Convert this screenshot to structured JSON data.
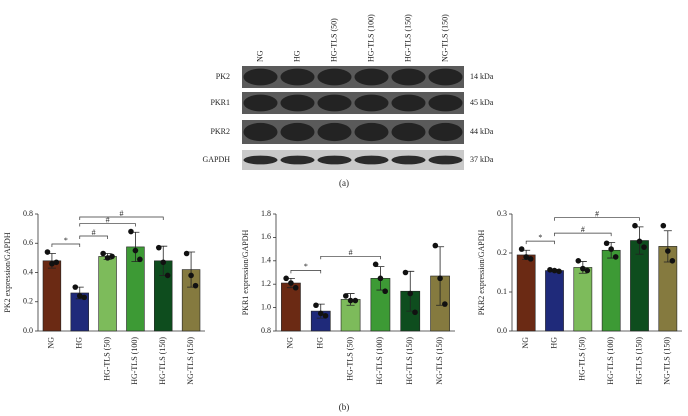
{
  "blot": {
    "caption": "(a)",
    "lanes": [
      "NG",
      "HG",
      "HG-TLS (50)",
      "HG-TLS (100)",
      "HG-TLS (150)",
      "NG-TLS (150)"
    ],
    "rows": [
      {
        "protein": "PK2",
        "size": "14 kDa"
      },
      {
        "protein": "PKR1",
        "size": "45 kDa"
      },
      {
        "protein": "PKR2",
        "size": "44 kDa"
      },
      {
        "protein": "GAPDH",
        "size": "37 kDa"
      }
    ]
  },
  "caption_b": "(b)",
  "chart_data": [
    {
      "type": "bar",
      "y_label": "PK2 expression/GAPDH",
      "categories": [
        "NG",
        "HG",
        "HG-TLS (50)",
        "HG-TLS (100)",
        "HG-TLS (150)",
        "NG-TLS (150)"
      ],
      "colors": [
        "#6b2a14",
        "#1f2a7a",
        "#7dbb5b",
        "#3d9a35",
        "#0e4d1e",
        "#857a3f"
      ],
      "values": [
        0.48,
        0.26,
        0.51,
        0.575,
        0.48,
        0.42
      ],
      "errors": [
        0.05,
        0.04,
        0.02,
        0.1,
        0.1,
        0.12
      ],
      "points": [
        [
          0.54,
          0.46,
          0.47
        ],
        [
          0.3,
          0.24,
          0.23
        ],
        [
          0.53,
          0.5,
          0.51
        ],
        [
          0.68,
          0.55,
          0.49
        ],
        [
          0.57,
          0.47,
          0.38
        ],
        [
          0.53,
          0.38,
          0.31
        ]
      ],
      "ylim": [
        0,
        0.8
      ],
      "yticks": [
        {
          "value": 0,
          "label": "0.0"
        },
        0.2,
        0.4,
        0.6,
        0.8
      ],
      "annotations": [
        {
          "text": "*",
          "from": "NG",
          "to": "HG"
        },
        {
          "text": "#",
          "from": "HG",
          "to": "HG-TLS (50)"
        },
        {
          "text": "#",
          "from": "HG",
          "to": "HG-TLS (100)"
        },
        {
          "text": "#",
          "from": "HG",
          "to": "HG-TLS (150)"
        }
      ]
    },
    {
      "type": "bar",
      "y_label": "PKR1 expression/GAPDH",
      "categories": [
        "NG",
        "HG",
        "HG-TLS (50)",
        "HG-TLS (100)",
        "HG-TLS (150)",
        "NG-TLS (150)"
      ],
      "colors": [
        "#6b2a14",
        "#1f2a7a",
        "#7dbb5b",
        "#3d9a35",
        "#0e4d1e",
        "#857a3f"
      ],
      "values": [
        1.21,
        0.97,
        1.07,
        1.25,
        1.14,
        1.27
      ],
      "errors": [
        0.04,
        0.06,
        0.05,
        0.1,
        0.17,
        0.25
      ],
      "points": [
        [
          1.25,
          1.21,
          1.17
        ],
        [
          1.02,
          0.95,
          0.93
        ],
        [
          1.1,
          1.06,
          1.06
        ],
        [
          1.37,
          1.25,
          1.14
        ],
        [
          1.3,
          1.12,
          0.96
        ],
        [
          1.53,
          1.25,
          1.03
        ]
      ],
      "ylim": [
        0.8,
        1.8
      ],
      "yticks": [
        0.8,
        {
          "value": 1,
          "label": "1.0"
        },
        1.2,
        1.4,
        1.6,
        1.8
      ],
      "annotations": [
        {
          "text": "*",
          "from": "NG",
          "to": "HG"
        },
        {
          "text": "#",
          "from": "HG",
          "to": "HG-TLS (100)"
        }
      ]
    },
    {
      "type": "bar",
      "y_label": "PKR2 expression/GAPDH",
      "categories": [
        "NG",
        "HG",
        "HG-TLS (50)",
        "HG-TLS (100)",
        "HG-TLS (150)",
        "NG-TLS (150)"
      ],
      "colors": [
        "#6b2a14",
        "#1f2a7a",
        "#7dbb5b",
        "#3d9a35",
        "#0e4d1e",
        "#857a3f"
      ],
      "values": [
        0.195,
        0.155,
        0.163,
        0.207,
        0.232,
        0.217
      ],
      "errors": [
        0.012,
        0.003,
        0.015,
        0.02,
        0.035,
        0.04
      ],
      "points": [
        [
          0.21,
          0.19,
          0.185
        ],
        [
          0.157,
          0.155,
          0.153
        ],
        [
          0.18,
          0.16,
          0.155
        ],
        [
          0.225,
          0.21,
          0.19
        ],
        [
          0.27,
          0.23,
          0.215
        ],
        [
          0.27,
          0.205,
          0.18
        ]
      ],
      "ylim": [
        0,
        0.3
      ],
      "yticks": [
        {
          "value": 0,
          "label": "0.0"
        },
        0.1,
        0.2,
        0.3
      ],
      "annotations": [
        {
          "text": "*",
          "from": "NG",
          "to": "HG"
        },
        {
          "text": "#",
          "from": "HG",
          "to": "HG-TLS (100)"
        },
        {
          "text": "#",
          "from": "HG",
          "to": "HG-TLS (150)"
        }
      ]
    }
  ]
}
